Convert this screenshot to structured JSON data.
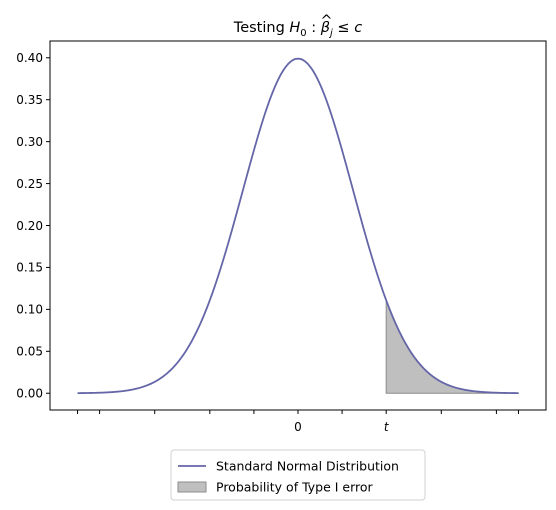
{
  "chart_data": {
    "type": "line",
    "title": {
      "prefix": "Testing ",
      "h": "H",
      "h_sub": "0",
      "colon": " : ",
      "beta": "β",
      "hat": "^",
      "beta_sub": "j",
      "rel": " ≤ ",
      "c": "c"
    },
    "xlabel": "",
    "ylabel": "",
    "xlim": [
      -4.5,
      4.5
    ],
    "ylim": [
      -0.02,
      0.42
    ],
    "x_ticks": [
      -4,
      -3.6,
      -2.6,
      -1.6,
      -0.8,
      0,
      0.8,
      1.6,
      2.6,
      3.6,
      4
    ],
    "x_tick_labels": [
      {
        "x": 0,
        "label": "0",
        "italic": false
      },
      {
        "x": 1.6,
        "label": "t",
        "italic": true
      }
    ],
    "y_ticks": [
      0.0,
      0.05,
      0.1,
      0.15,
      0.2,
      0.25,
      0.3,
      0.35,
      0.4
    ],
    "y_tick_labels": [
      "0.00",
      "0.05",
      "0.10",
      "0.15",
      "0.20",
      "0.25",
      "0.30",
      "0.35",
      "0.40"
    ],
    "grid": false,
    "series": [
      {
        "name": "Standard Normal Distribution",
        "function": "standard-normal-pdf",
        "x_range": [
          -4,
          4
        ],
        "color": "#6466a8"
      }
    ],
    "shaded_region": {
      "name": "Probability of Type I error",
      "x_range": [
        1.6,
        4
      ],
      "fill": "#bfbfbf",
      "edge": "#8c8c8c"
    },
    "legend": {
      "placement": "below-center",
      "entries": [
        {
          "label": "Standard Normal Distribution",
          "kind": "line",
          "color": "#6466a8"
        },
        {
          "label": "Probability of Type I error",
          "kind": "patch",
          "color": "#bfbfbf"
        }
      ]
    }
  }
}
